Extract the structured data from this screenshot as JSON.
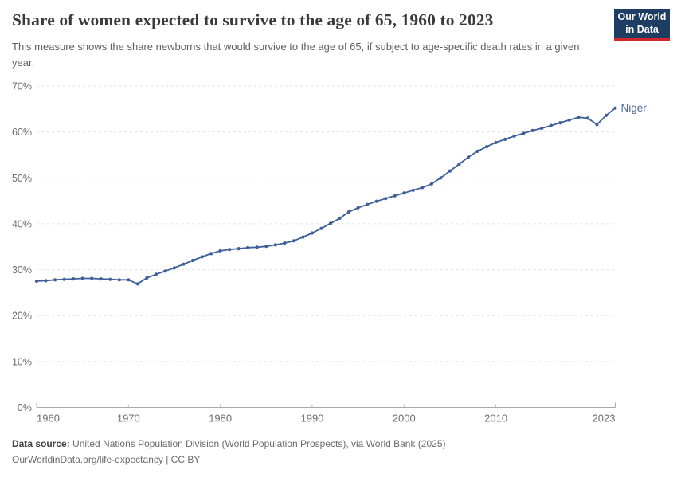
{
  "header": {
    "title": "Share of women expected to survive to the age of 65, 1960 to 2023",
    "subtitle": "This measure shows the share newborns that would survive to the age of 65, if subject to age-specific death rates in a given year.",
    "logo_line1": "Our World",
    "logo_line2": "in Data"
  },
  "chart_data": {
    "type": "line",
    "title": "Share of women expected to survive to the age of 65, 1960 to 2023",
    "entity_label": "Niger",
    "xlabel": "",
    "ylabel": "",
    "xlim": [
      1960,
      2023
    ],
    "ylim": [
      0,
      70
    ],
    "grid": "horizontal-dashed",
    "legend_position": "end-of-line-label",
    "xticks": [
      1960,
      1970,
      1980,
      1990,
      2000,
      2010,
      2023
    ],
    "yticks": [
      0,
      10,
      20,
      30,
      40,
      50,
      60,
      70
    ],
    "ytick_suffix": "%",
    "series": [
      {
        "name": "Niger",
        "x": [
          1960,
          1961,
          1962,
          1963,
          1964,
          1965,
          1966,
          1967,
          1968,
          1969,
          1970,
          1971,
          1972,
          1973,
          1974,
          1975,
          1976,
          1977,
          1978,
          1979,
          1980,
          1981,
          1982,
          1983,
          1984,
          1985,
          1986,
          1987,
          1988,
          1989,
          1990,
          1991,
          1992,
          1993,
          1994,
          1995,
          1996,
          1997,
          1998,
          1999,
          2000,
          2001,
          2002,
          2003,
          2004,
          2005,
          2006,
          2007,
          2008,
          2009,
          2010,
          2011,
          2012,
          2013,
          2014,
          2015,
          2016,
          2017,
          2018,
          2019,
          2020,
          2021,
          2022,
          2023
        ],
        "values": [
          27.5,
          27.6,
          27.8,
          27.9,
          28.0,
          28.1,
          28.1,
          28.0,
          27.9,
          27.8,
          27.8,
          26.9,
          28.2,
          29.0,
          29.7,
          30.4,
          31.2,
          32.0,
          32.8,
          33.5,
          34.1,
          34.4,
          34.6,
          34.8,
          34.9,
          35.1,
          35.4,
          35.8,
          36.3,
          37.1,
          38.0,
          39.0,
          40.1,
          41.2,
          42.6,
          43.5,
          44.2,
          44.9,
          45.5,
          46.1,
          46.7,
          47.3,
          47.9,
          48.7,
          50.0,
          51.5,
          53.0,
          54.5,
          55.8,
          56.8,
          57.7,
          58.4,
          59.1,
          59.7,
          60.3,
          60.8,
          61.4,
          62.0,
          62.6,
          63.2,
          63.0,
          61.6,
          63.6,
          65.2
        ]
      }
    ]
  },
  "footer": {
    "datasource_label": "Data source:",
    "datasource_text": " United Nations Population Division (World Population Prospects), via World Bank (2025)",
    "link_line": "OurWorldinData.org/life-expectancy | CC BY"
  },
  "colors": {
    "line": "#3e5f99",
    "entity_label": "#4a699e",
    "gridline": "#e2e2e2",
    "axis": "#a9a9a9",
    "tick": "#bcbcbc",
    "tick_label": "#6e6e6e",
    "logo_bg": "#1d3d63",
    "logo_red": "#d2262b"
  }
}
